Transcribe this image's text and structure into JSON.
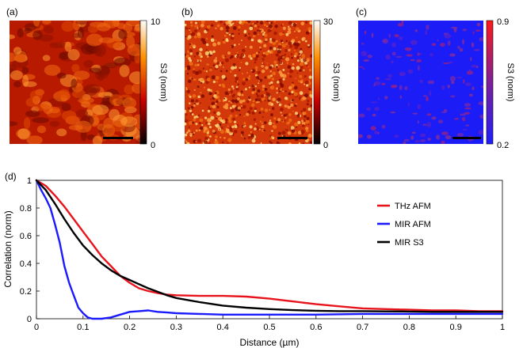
{
  "maps": [
    {
      "panel_label": "(a)",
      "colorbar_label": "S3 (norm)",
      "colorbar_max": "10",
      "colorbar_min": "0",
      "colormap": "hot",
      "texture": "smooth-blobs"
    },
    {
      "panel_label": "(b)",
      "colorbar_label": "S3 (norm)",
      "colorbar_max": "30",
      "colorbar_min": "0",
      "colormap": "hot",
      "texture": "fine-speckle"
    },
    {
      "panel_label": "(c)",
      "colorbar_label": "S3 (norm)",
      "colorbar_max": "0.9",
      "colorbar_min": "0.2",
      "colormap": "blue-red",
      "texture": "sparse-patches"
    }
  ],
  "chart_data": {
    "type": "line",
    "panel_label": "(d)",
    "xlabel": "Distance (µm)",
    "ylabel": "Correlation (norm)",
    "xlim": [
      0,
      1
    ],
    "ylim": [
      0,
      1
    ],
    "xticks": [
      0,
      0.1,
      0.2,
      0.3,
      0.4,
      0.5,
      0.6,
      0.7,
      0.8,
      0.9,
      1
    ],
    "xtick_labels": [
      "0",
      "0.1",
      "0.2",
      "0.3",
      "0.4",
      "0.5",
      "0.6",
      "0.7",
      "0.8",
      "0.9",
      "1"
    ],
    "yticks": [
      0,
      0.2,
      0.4,
      0.6,
      0.8,
      1
    ],
    "ytick_labels": [
      "0",
      "0.2",
      "0.4",
      "0.6",
      "0.8",
      "1"
    ],
    "legend_position": "top-right",
    "series": [
      {
        "name": "THz AFM",
        "color": "#e8141c",
        "x": [
          0,
          0.02,
          0.04,
          0.06,
          0.08,
          0.1,
          0.12,
          0.14,
          0.16,
          0.18,
          0.2,
          0.22,
          0.24,
          0.26,
          0.28,
          0.3,
          0.35,
          0.4,
          0.45,
          0.5,
          0.55,
          0.6,
          0.65,
          0.7,
          0.75,
          0.8,
          0.85,
          0.9,
          0.95,
          1.0
        ],
        "y": [
          1.0,
          0.96,
          0.89,
          0.81,
          0.72,
          0.63,
          0.54,
          0.45,
          0.38,
          0.31,
          0.26,
          0.22,
          0.2,
          0.185,
          0.175,
          0.17,
          0.165,
          0.165,
          0.16,
          0.145,
          0.125,
          0.105,
          0.09,
          0.075,
          0.07,
          0.065,
          0.06,
          0.06,
          0.055,
          0.055
        ]
      },
      {
        "name": "MIR AFM",
        "color": "#1a1aff",
        "x": [
          0,
          0.01,
          0.02,
          0.03,
          0.04,
          0.05,
          0.06,
          0.07,
          0.08,
          0.09,
          0.1,
          0.11,
          0.12,
          0.14,
          0.16,
          0.18,
          0.2,
          0.22,
          0.24,
          0.26,
          0.28,
          0.3,
          0.35,
          0.4,
          0.45,
          0.5,
          0.6,
          0.7,
          0.8,
          0.9,
          1.0
        ],
        "y": [
          1.0,
          0.93,
          0.87,
          0.8,
          0.68,
          0.55,
          0.38,
          0.26,
          0.17,
          0.08,
          0.04,
          0.01,
          0.0,
          0.0,
          0.01,
          0.03,
          0.05,
          0.055,
          0.06,
          0.05,
          0.045,
          0.04,
          0.035,
          0.03,
          0.03,
          0.03,
          0.03,
          0.035,
          0.035,
          0.035,
          0.035
        ]
      },
      {
        "name": "MIR S3",
        "color": "#000000",
        "x": [
          0,
          0.02,
          0.04,
          0.06,
          0.08,
          0.1,
          0.12,
          0.14,
          0.16,
          0.18,
          0.2,
          0.22,
          0.24,
          0.26,
          0.28,
          0.3,
          0.35,
          0.4,
          0.45,
          0.5,
          0.55,
          0.6,
          0.65,
          0.7,
          0.75,
          0.8,
          0.85,
          0.9,
          0.95,
          1.0
        ],
        "y": [
          1.0,
          0.93,
          0.83,
          0.72,
          0.62,
          0.53,
          0.46,
          0.4,
          0.35,
          0.31,
          0.28,
          0.25,
          0.22,
          0.195,
          0.17,
          0.15,
          0.12,
          0.095,
          0.08,
          0.07,
          0.062,
          0.058,
          0.055,
          0.055,
          0.053,
          0.052,
          0.05,
          0.05,
          0.05,
          0.05
        ]
      }
    ]
  }
}
